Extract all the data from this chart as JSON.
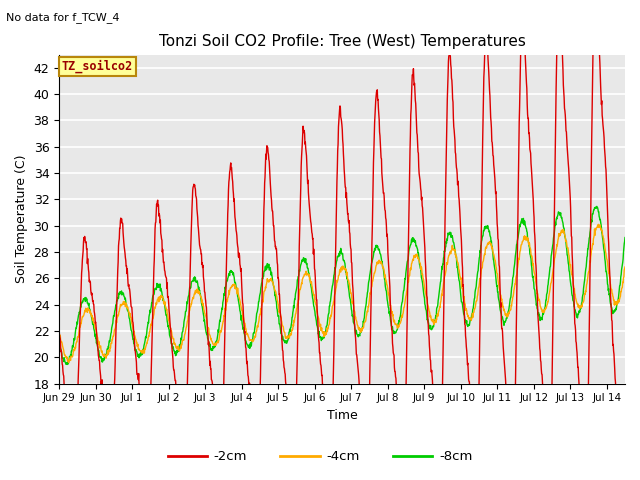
{
  "title": "Tonzi Soil CO2 Profile: Tree (West) Temperatures",
  "no_data_text": "No data for f_TCW_4",
  "ylabel": "Soil Temperature (C)",
  "xlabel": "Time",
  "ylim": [
    18,
    43
  ],
  "yticks": [
    18,
    20,
    22,
    24,
    26,
    28,
    30,
    32,
    34,
    36,
    38,
    40,
    42
  ],
  "bg_color": "#e8e8e8",
  "grid_color": "white",
  "legend_label": "TZ_soilco2",
  "legend_bg": "#ffff99",
  "legend_border": "#b8860b",
  "series_colors": [
    "#dd0000",
    "#ffaa00",
    "#00cc00"
  ],
  "series_labels": [
    "-2cm",
    "-4cm",
    "-8cm"
  ],
  "line_width": 1.0,
  "xtick_labels": [
    "Jun 29",
    "Jun 30",
    "Jul 1",
    "Jul 2",
    "Jul 3",
    "Jul 4",
    "Jul 5",
    "Jul 6",
    "Jul 7",
    "Jul 8",
    "Jul 9",
    "Jul 10",
    "Jul 11",
    "Jul 12",
    "Jul 13",
    "Jul 14"
  ],
  "n_days": 15.5,
  "samples_per_day": 96
}
